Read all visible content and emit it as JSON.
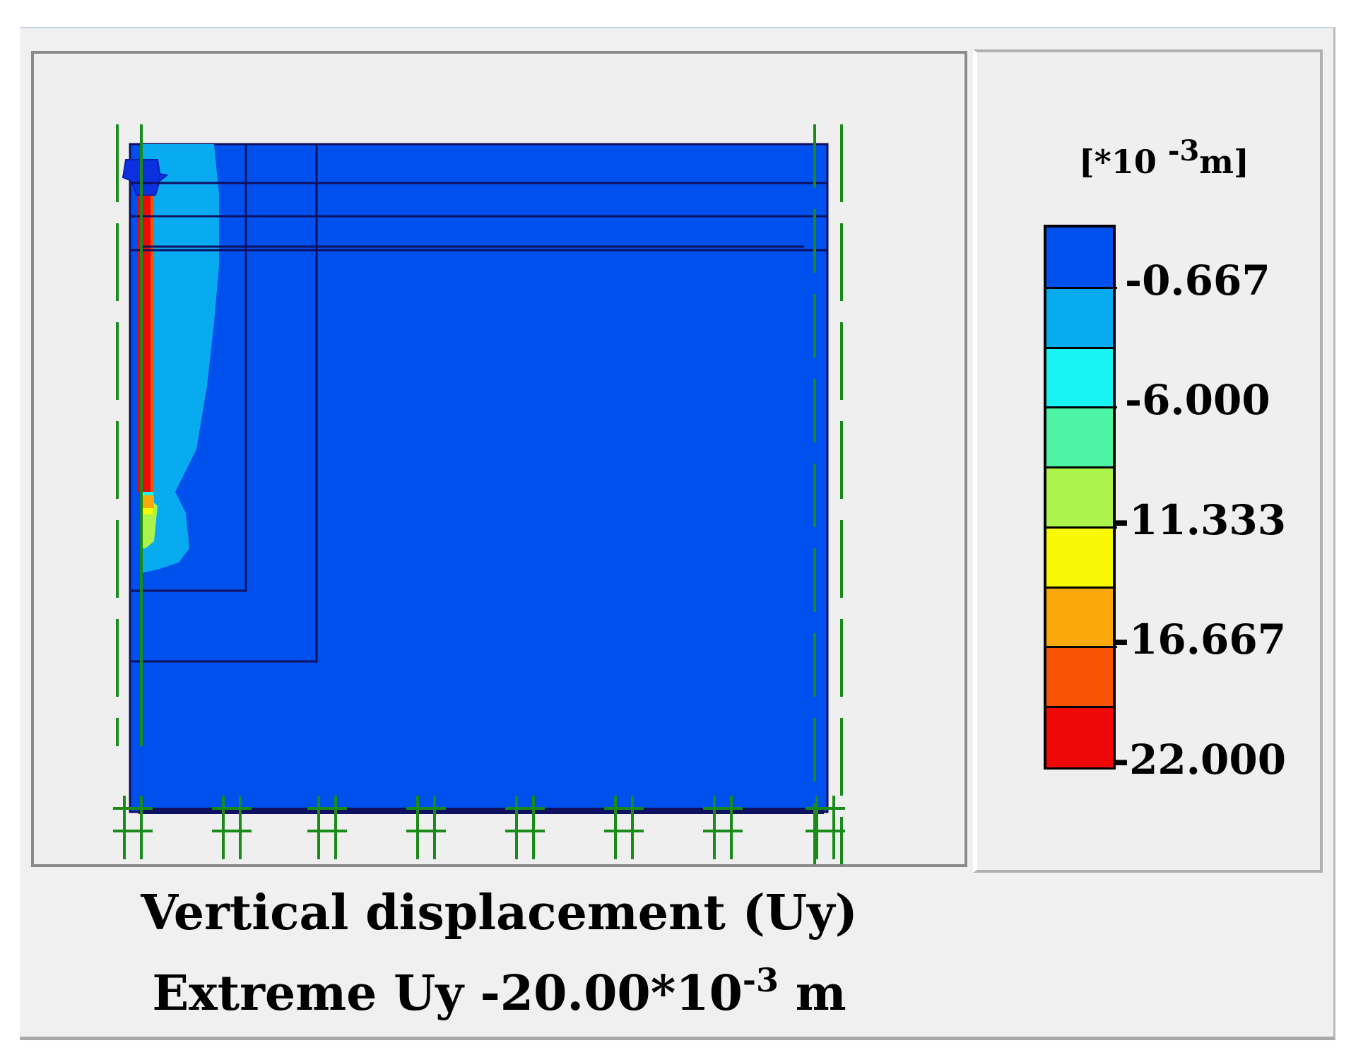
{
  "plot": {
    "title": "Vertical displacement (Uy)",
    "extreme_prefix": "Extreme Uy -20.00*10",
    "extreme_exponent": "-3",
    "extreme_unit": " m"
  },
  "legend": {
    "unit_prefix": "[*10 ",
    "unit_exponent": "-3",
    "unit_suffix": "m]",
    "bands": [
      {
        "color": "#0050ee"
      },
      {
        "color": "#08aaf0"
      },
      {
        "color": "#18f4f4"
      },
      {
        "color": "#4cf4a4"
      },
      {
        "color": "#acf44c"
      },
      {
        "color": "#f8f804"
      },
      {
        "color": "#f8a808"
      },
      {
        "color": "#f85404"
      },
      {
        "color": "#f00808"
      }
    ],
    "labels": [
      "-0.667",
      "-6.000",
      "-11.333",
      "-16.667",
      "-22.000"
    ]
  },
  "colors": {
    "model_fill": "#0050ee",
    "model_outline": "#101060",
    "fixity_green": "#1a8a1a"
  }
}
